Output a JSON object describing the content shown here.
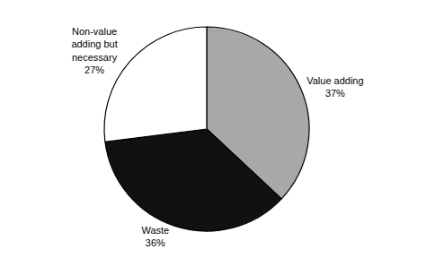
{
  "chart_data": {
    "type": "pie",
    "labels": [
      "Value adding\n37%",
      "Waste\n36%",
      "Non-value\nadding but\nnecessary\n27%"
    ],
    "values": [
      37,
      36,
      27
    ],
    "colors": [
      "#a8a8a8",
      "#111111",
      "#ffffff"
    ]
  }
}
